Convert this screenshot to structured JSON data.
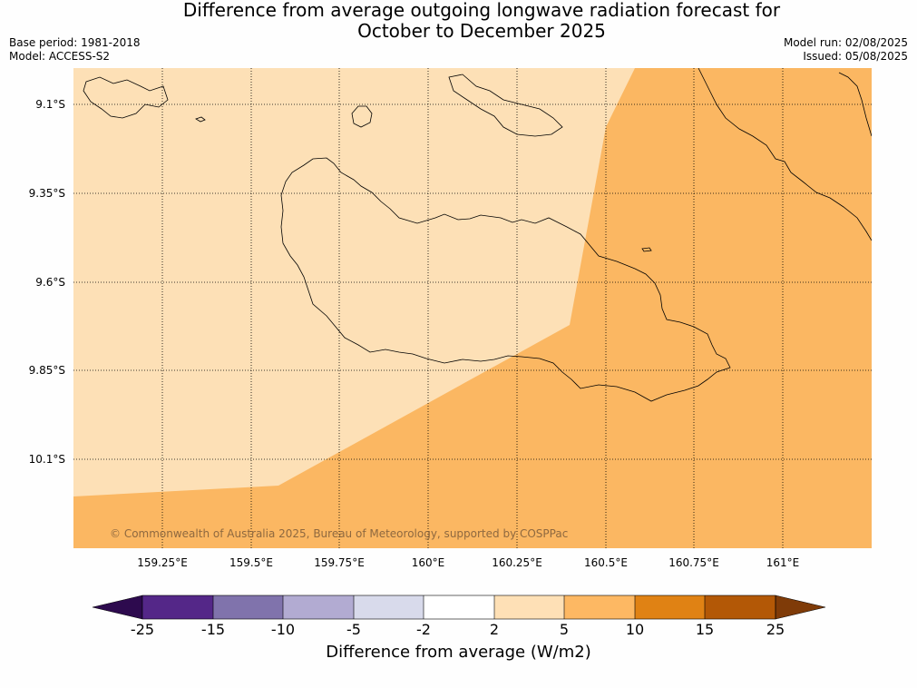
{
  "header": {
    "title_line1": "Difference from average outgoing longwave radiation forecast for",
    "title_line2": "October to December 2025",
    "base_period": "Base period: 1981-2018",
    "model": "Model: ACCESS-S2",
    "model_run": "Model run: 02/08/2025",
    "issued": "Issued: 05/08/2025"
  },
  "map": {
    "lat_ticks": [
      "9.1°S",
      "9.35°S",
      "9.6°S",
      "9.85°S",
      "10.1°S"
    ],
    "lon_ticks": [
      "159.25°E",
      "159.5°E",
      "159.75°E",
      "160°E",
      "160.25°E",
      "160.5°E",
      "160.75°E",
      "161°E"
    ],
    "copyright": "© Commonwealth of Australia 2025, Bureau of Meteorology, supported by COSPPac",
    "regions": [
      {
        "category": "2 to 5",
        "color": "#fde0b6"
      },
      {
        "category": "5 to 10",
        "color": "#fbb762"
      }
    ]
  },
  "colorbar": {
    "label": "Difference from average (W/m2)",
    "ticks": [
      "-25",
      "-15",
      "-10",
      "-5",
      "-2",
      "2",
      "5",
      "10",
      "15",
      "25"
    ],
    "colors": [
      "#2d0a4e",
      "#542788",
      "#8073ac",
      "#b2abd2",
      "#d8daeb",
      "#ffffff",
      "#fee0b6",
      "#fdb863",
      "#e08214",
      "#b35806",
      "#7f3b08"
    ]
  }
}
